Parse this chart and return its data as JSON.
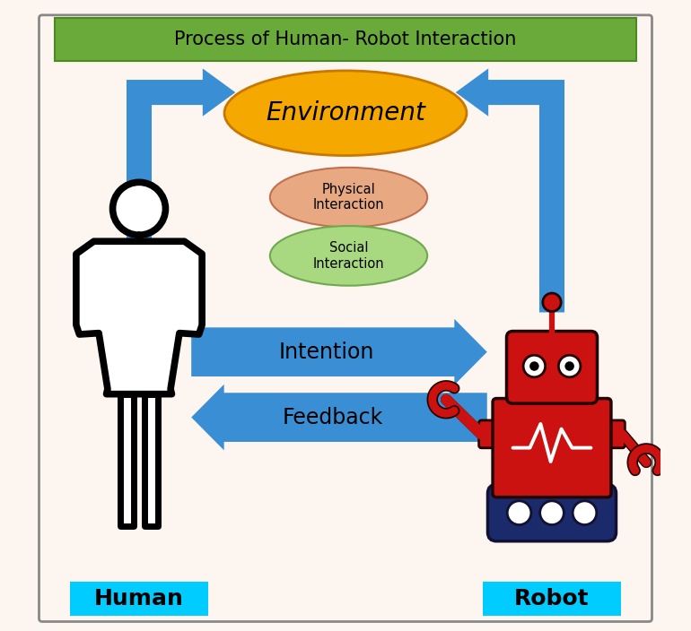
{
  "title": "Process of Human- Robot Interaction",
  "title_bg": "#6aaa3a",
  "title_color": "black",
  "bg_color": "#fdf5f0",
  "border_color": "#888888",
  "arrow_color": "#4472c4",
  "arrow_color2": "#3a8fd4",
  "environment_color": "#f5a800",
  "environment_text": "Environment",
  "physical_color": "#e8a882",
  "physical_text": "Physical\nInteraction",
  "social_color": "#a8d880",
  "social_text": "Social\nInteraction",
  "intention_text": "Intention",
  "feedback_text": "Feedback",
  "human_label": "Human",
  "robot_label": "Robot",
  "label_bg": "#00ccff",
  "label_color": "black",
  "robot_red": "#cc1111",
  "robot_dark": "#220000",
  "robot_navy": "#1a2a6a",
  "robot_navy_dark": "#111133"
}
